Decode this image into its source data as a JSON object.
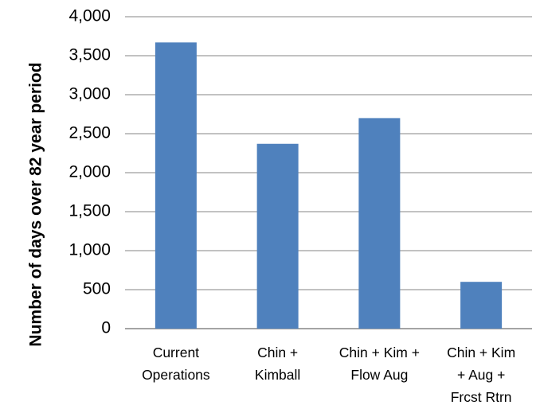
{
  "chart_data": {
    "type": "bar",
    "categories": [
      [
        "Current",
        "Operations"
      ],
      [
        "Chin +",
        "Kimball"
      ],
      [
        "Chin + Kim +",
        "Flow Aug"
      ],
      [
        "Chin  + Kim",
        "+ Aug +",
        "Frcst Rtrn"
      ]
    ],
    "values": [
      3670,
      2370,
      2700,
      600
    ],
    "ylabel": "Number of days over 82 year period",
    "xlabel": "",
    "ylim": [
      0,
      4000
    ],
    "yticks": [
      0,
      500,
      1000,
      1500,
      2000,
      2500,
      3000,
      3500,
      4000
    ],
    "ytick_labels": [
      "0",
      "500",
      "1,000",
      "1,500",
      "2,000",
      "2,500",
      "3,000",
      "3,500",
      "4,000"
    ],
    "grid": true,
    "legend": false,
    "bar_color": "#4F81BD",
    "grid_color": "#868686"
  }
}
